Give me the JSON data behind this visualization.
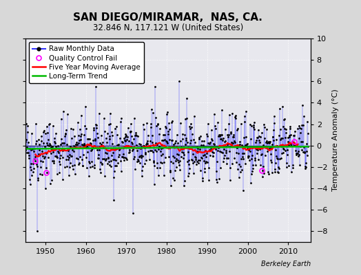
{
  "title": "SAN DIEGO/MIRAMAR,  NAS, CA.",
  "subtitle": "32.846 N, 117.121 W (United States)",
  "ylabel": "Temperature Anomaly (°C)",
  "credit": "Berkeley Earth",
  "ylim": [
    -9,
    10
  ],
  "yticks": [
    -8,
    -6,
    -4,
    -2,
    0,
    2,
    4,
    6,
    8,
    10
  ],
  "xlim": [
    1945.0,
    2015.5
  ],
  "xticks": [
    1950,
    1960,
    1970,
    1980,
    1990,
    2000,
    2010
  ],
  "start_year": 1945,
  "end_year": 2014,
  "seed": 42,
  "raw_color": "#3333ff",
  "ma_color": "#ff0000",
  "trend_color": "#00bb00",
  "qc_color": "#ff00ff",
  "bg_color": "#e0e0e0",
  "plot_bg": "#e8e8f0",
  "grid_color": "#ffffff",
  "title_fontsize": 11,
  "subtitle_fontsize": 8.5,
  "axis_fontsize": 8,
  "legend_fontsize": 7.5
}
